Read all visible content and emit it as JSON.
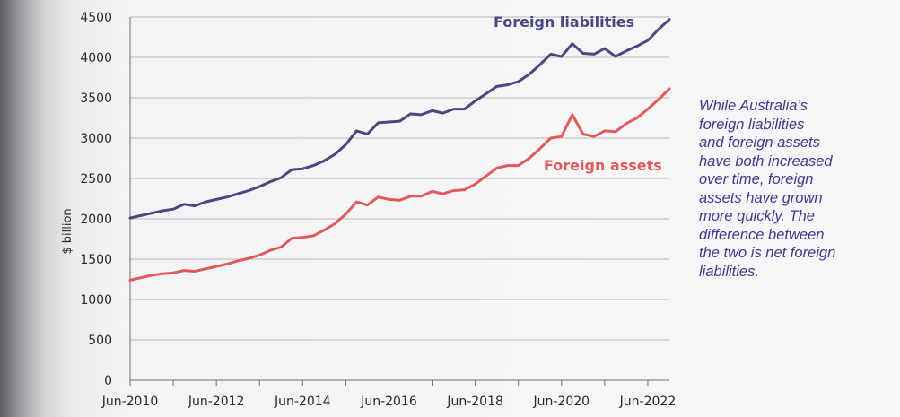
{
  "chart_data": {
    "type": "line",
    "ylabel": "$ billion",
    "xlabel": "",
    "ylim": [
      0,
      4500
    ],
    "yticks": [
      0,
      500,
      1000,
      1500,
      2000,
      2500,
      3000,
      3500,
      4000,
      4500
    ],
    "x_tick_labels": [
      "Jun-2010",
      "Jun-2012",
      "Jun-2014",
      "Jun-2016",
      "Jun-2018",
      "Jun-2020",
      "Jun-2022"
    ],
    "grid": "horizontal",
    "x_start": "Jun-2010",
    "x_end": "Jun-2022",
    "frequency": "quarterly",
    "series": [
      {
        "name": "Foreign liabilities",
        "color": "#4a4781",
        "values": [
          2010,
          2040,
          2070,
          2100,
          2120,
          2180,
          2160,
          2210,
          2240,
          2270,
          2310,
          2350,
          2400,
          2460,
          2510,
          2610,
          2620,
          2660,
          2720,
          2800,
          2920,
          3090,
          3050,
          3190,
          3200,
          3210,
          3300,
          3290,
          3340,
          3310,
          3360,
          3360,
          3460,
          3550,
          3640,
          3660,
          3700,
          3790,
          3910,
          4040,
          4010,
          4170,
          4050,
          4040,
          4110,
          4010,
          4080,
          4140,
          4210,
          4350,
          4470
        ]
      },
      {
        "name": "Foreign assets",
        "color": "#e05a5a",
        "values": [
          1240,
          1270,
          1300,
          1320,
          1330,
          1360,
          1350,
          1380,
          1410,
          1440,
          1480,
          1510,
          1550,
          1610,
          1650,
          1760,
          1770,
          1790,
          1860,
          1940,
          2060,
          2210,
          2170,
          2270,
          2240,
          2230,
          2280,
          2280,
          2340,
          2310,
          2350,
          2360,
          2430,
          2530,
          2630,
          2660,
          2660,
          2750,
          2870,
          3000,
          3020,
          3290,
          3050,
          3020,
          3090,
          3080,
          3180,
          3250,
          3360,
          3480,
          3610
        ]
      }
    ],
    "labels": {
      "liabilities": "Foreign liabilities",
      "assets": "Foreign assets"
    }
  },
  "annotation": {
    "lines": [
      "While Australia’s",
      "foreign liabilities",
      "and foreign assets",
      "have both increased",
      "over time, foreign",
      "assets have grown",
      "more quickly. The",
      "difference between",
      "the two is net foreign",
      "liabilities."
    ]
  }
}
